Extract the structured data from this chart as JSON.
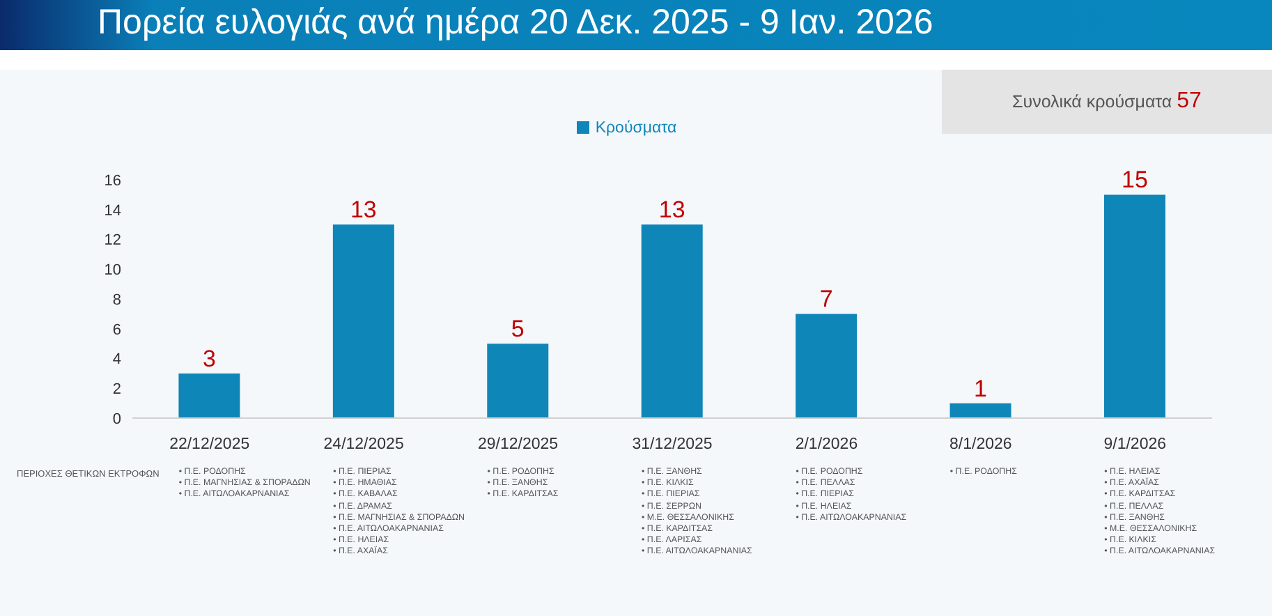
{
  "chart_data": {
    "type": "bar",
    "title": "Πορεία ευλογιάς ανά ημέρα 20 Δεκ. 2025 - 9 Ιαν. 2026",
    "categories": [
      "22/12/2025",
      "24/12/2025",
      "29/12/2025",
      "31/12/2025",
      "2/1/2026",
      "8/1/2026",
      "9/1/2026"
    ],
    "series": [
      {
        "name": "Κρούσματα",
        "color": "#0e86b8",
        "values": [
          3,
          13,
          5,
          13,
          7,
          1,
          15
        ]
      }
    ],
    "ylim": [
      0,
      16
    ],
    "yticks": [
      0,
      2,
      4,
      6,
      8,
      10,
      12,
      14,
      16
    ],
    "data_labels": true,
    "legend": "top",
    "grid": false,
    "annotations": [
      "Συνολικά κρούσματα 57",
      "ΠΕΡΙΟΧΕΣ ΘΕΤΙΚΩΝ ΕΚΤΡΟΦΩΝ",
      "• Π.Ε. ΡΟΔΟΠΗΣ\n• Π.Ε. ΜΑΓΝΗΣΙΑΣ & ΣΠΟΡΑΔΩΝ\n• Π.Ε. ΑΙΤΩΛΟΑΚΑΡΝΑΝΙΑΣ",
      "• Π.Ε. ΠΙΕΡΙΑΣ\n• Π.Ε. ΗΜΑΘΙΑΣ\n• Π.Ε. ΚΑΒΑΛΑΣ\n• Π.Ε. ΔΡΑΜΑΣ\n• Π.Ε. ΜΑΓΝΗΣΙΑΣ & ΣΠΟΡΑΔΩΝ\n• Π.Ε. ΑΙΤΩΛΟΑΚΑΡΝΑΝΙΑΣ\n• Π.Ε. ΗΛΕΙΑΣ\n• Π.Ε. ΑΧΑΪΑΣ",
      "• Π.Ε. ΡΟΔΟΠΗΣ\n• Π.Ε. ΞΑΝΘΗΣ\n• Π.Ε. ΚΑΡΔΙΤΣΑΣ",
      "• Π.Ε. ΞΑΝΘΗΣ\n• Π.Ε. ΚΙΛΚΙΣ\n• Π.Ε. ΠΙΕΡΙΑΣ\n• Π.Ε. ΣΕΡΡΩΝ\n• Μ.Ε. ΘΕΣΣΑΛΟΝΙΚΗΣ\n• Π.Ε. ΚΑΡΔΙΤΣΑΣ\n• Π.Ε. ΛΑΡΙΣΑΣ\n• Π.Ε. ΑΙΤΩΛΟΑΚΑΡΝΑΝΙΑΣ",
      "• Π.Ε. ΡΟΔΟΠΗΣ\n• Π.Ε. ΠΕΛΛΑΣ\n• Π.Ε. ΠΙΕΡΙΑΣ\n• Π.Ε. ΗΛΕΙΑΣ\n• Π.Ε. ΑΙΤΩΛΟΑΚΑΡΝΑΝΙΑΣ",
      "• Π.Ε. ΡΟΔΟΠΗΣ",
      "• Π.Ε. ΗΛΕΙΑΣ\n• Π.Ε. ΑΧΑΪΑΣ\n• Π.Ε. ΚΑΡΔΙΤΣΑΣ\n• Π.Ε. ΠΕΛΛΑΣ\n• Π.Ε. ΞΑΝΘΗΣ\n• Μ.Ε. ΘΕΣΣΑΛΟΝΙΚΗΣ\n• Π.Ε. ΚΙΛΚΙΣ\n• Π.Ε. ΑΙΤΩΛΟΑΚΑΡΝΑΝΙΑΣ"
    ]
  }
}
